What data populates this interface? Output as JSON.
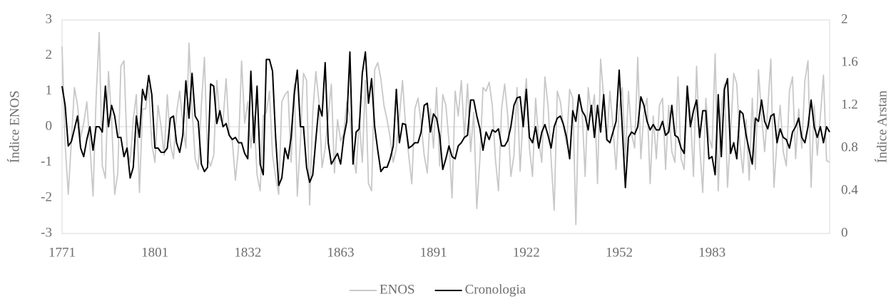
{
  "chart_data": {
    "type": "line",
    "y_label": "Índice ENOS",
    "y2_label": "Índice Arstan",
    "categories": [
      "1771",
      null,
      null,
      null,
      null,
      null,
      null,
      null,
      null,
      null,
      null,
      null,
      null,
      null,
      null,
      null,
      null,
      null,
      null,
      null,
      null,
      null,
      null,
      null,
      null,
      null,
      null,
      null,
      null,
      null,
      "1801",
      null,
      null,
      null,
      null,
      null,
      null,
      null,
      null,
      null,
      null,
      null,
      null,
      null,
      null,
      null,
      null,
      null,
      null,
      null,
      null,
      null,
      null,
      null,
      null,
      null,
      null,
      null,
      null,
      null,
      "1832",
      null,
      null,
      null,
      null,
      null,
      null,
      null,
      null,
      null,
      null,
      null,
      null,
      null,
      null,
      null,
      null,
      null,
      null,
      null,
      null,
      null,
      null,
      null,
      null,
      null,
      null,
      null,
      null,
      null,
      "1863",
      null,
      null,
      null,
      null,
      null,
      null,
      null,
      null,
      null,
      null,
      null,
      null,
      null,
      null,
      null,
      null,
      null,
      null,
      null,
      null,
      null,
      null,
      null,
      null,
      null,
      null,
      null,
      null,
      null,
      "1891",
      null,
      null,
      null,
      null,
      null,
      null,
      null,
      null,
      null,
      null,
      null,
      null,
      null,
      null,
      null,
      null,
      null,
      null,
      null,
      null,
      null,
      null,
      null,
      null,
      null,
      null,
      null,
      null,
      null,
      "1922",
      null,
      null,
      null,
      null,
      null,
      null,
      null,
      null,
      null,
      null,
      null,
      null,
      null,
      null,
      null,
      null,
      null,
      null,
      null,
      null,
      null,
      null,
      null,
      null,
      null,
      null,
      null,
      null,
      null,
      "1952",
      null,
      null,
      null,
      null,
      null,
      null,
      null,
      null,
      null,
      null,
      null,
      null,
      null,
      null,
      null,
      null,
      null,
      null,
      null,
      null,
      null,
      null,
      null,
      null,
      null,
      null,
      null,
      null,
      null,
      "1983",
      null,
      null,
      null,
      null,
      null,
      null,
      null,
      null,
      null,
      null,
      null,
      null,
      null,
      null,
      null,
      null,
      null,
      null,
      null,
      null,
      null,
      null,
      null,
      null,
      null,
      null,
      null,
      null,
      null,
      null,
      null,
      null,
      null,
      null,
      null,
      null,
      null,
      null
    ],
    "series": [
      {
        "name": "ENOS",
        "color": "#c8c8c8",
        "axis": "y",
        "values": [
          2.25,
          -0.5,
          -1.9,
          -0.4,
          1.1,
          0.6,
          -0.3,
          0.1,
          0.7,
          -0.5,
          -1.95,
          0.8,
          2.65,
          -1.1,
          -1.45,
          1.55,
          0.2,
          -1.9,
          -1.3,
          1.7,
          1.85,
          -0.6,
          -1.0,
          0.2,
          0.9,
          -1.85,
          0.5,
          0.5,
          1.15,
          -0.5,
          -1.0,
          0.6,
          0.0,
          -0.8,
          0.9,
          -0.5,
          -0.9,
          0.4,
          1.0,
          0.1,
          -0.6,
          2.35,
          0.5,
          -0.9,
          -1.2,
          0.6,
          1.95,
          -0.9,
          -1.1,
          -0.8,
          1.3,
          0.2,
          0.15,
          1.35,
          -0.2,
          -0.4,
          -1.5,
          -0.6,
          1.85,
          0.1,
          0.7,
          -0.6,
          0.3,
          -1.35,
          -1.8,
          0.3,
          0.4,
          1.0,
          -0.8,
          -1.4,
          -1.9,
          0.7,
          0.9,
          1.0,
          -1.0,
          1.2,
          -1.95,
          -0.4,
          1.5,
          1.3,
          -2.2,
          0.4,
          1.55,
          0.7,
          -1.15,
          -0.6,
          0.3,
          1.2,
          -1.3,
          0.2,
          -0.4,
          -0.2,
          0.7,
          0.3,
          -0.8,
          -1.3,
          0.2,
          -1.0,
          1.3,
          -1.6,
          -1.8,
          1.6,
          1.8,
          1.35,
          0.6,
          0.2,
          -0.3,
          -1.0,
          -0.6,
          0.3,
          1.3,
          0.0,
          -0.8,
          -1.6,
          0.5,
          0.8,
          0.1,
          -0.8,
          -1.3,
          0.5,
          -0.6,
          1.1,
          -1.1,
          0.9,
          0.6,
          -0.4,
          -2.0,
          1.0,
          0.3,
          1.3,
          -0.3,
          1.2,
          -0.7,
          0.4,
          -2.3,
          -0.9,
          1.1,
          1.0,
          1.25,
          0.6,
          -0.9,
          -1.8,
          0.5,
          1.2,
          0.3,
          -1.4,
          -0.8,
          1.1,
          -1.25,
          0.4,
          1.35,
          -0.6,
          -1.4,
          0.8,
          -0.4,
          -1.0,
          1.4,
          0.6,
          -0.9,
          -2.35,
          1.0,
          0.7,
          0.0,
          -0.5,
          1.05,
          0.8,
          -2.75,
          0.8,
          0.5,
          -1.4,
          1.1,
          0.3,
          0.9,
          -1.6,
          1.9,
          0.8,
          -0.4,
          1.0,
          0.0,
          -1.2,
          0.5,
          1.1,
          -0.9,
          1.0,
          -0.2,
          -0.6,
          1.95,
          -0.9,
          0.4,
          0.8,
          -1.6,
          0.3,
          -0.9,
          0.6,
          0.8,
          -1.2,
          0.6,
          -0.7,
          -1.0,
          1.4,
          -0.9,
          -1.2,
          1.1,
          0.4,
          -1.4,
          1.7,
          -0.5,
          -1.85,
          0.8,
          -0.3,
          -0.6,
          2.05,
          -1.8,
          0.5,
          1.2,
          -1.7,
          -0.2,
          1.5,
          1.2,
          -0.5,
          -1.3,
          0.2,
          -1.5,
          0.8,
          -1.2,
          1.6,
          0.3,
          -0.7,
          0.5,
          1.9,
          -1.7,
          -0.4,
          0.6,
          -0.7,
          -1.1,
          1.0,
          1.4,
          -0.9,
          0.5,
          -0.6,
          1.3,
          1.85,
          -1.7,
          0.6,
          -0.8,
          0.3,
          1.45,
          -0.95,
          -1.0
        ]
      },
      {
        "name": "Cronologia",
        "color": "#000000",
        "axis": "y2",
        "values": [
          1.38,
          1.2,
          0.82,
          0.86,
          0.98,
          1.1,
          0.8,
          0.72,
          0.88,
          1.0,
          0.78,
          1.0,
          1.0,
          0.95,
          1.38,
          1.0,
          1.2,
          1.1,
          0.9,
          0.9,
          0.72,
          0.8,
          0.52,
          0.62,
          1.1,
          0.9,
          1.35,
          1.25,
          1.48,
          1.3,
          0.8,
          0.8,
          0.76,
          0.76,
          0.8,
          1.08,
          1.1,
          0.85,
          0.76,
          0.92,
          1.43,
          1.08,
          1.5,
          1.1,
          1.05,
          0.65,
          0.58,
          0.62,
          1.4,
          1.38,
          1.03,
          1.15,
          1.0,
          1.03,
          0.92,
          0.88,
          0.9,
          0.85,
          0.85,
          0.75,
          0.7,
          1.52,
          0.85,
          1.38,
          0.65,
          0.55,
          1.63,
          1.63,
          1.52,
          0.9,
          0.45,
          0.52,
          0.8,
          0.7,
          0.9,
          1.3,
          1.53,
          1.0,
          1.0,
          0.62,
          0.48,
          0.55,
          0.88,
          1.2,
          1.1,
          1.6,
          0.85,
          0.65,
          0.7,
          0.75,
          0.65,
          0.9,
          1.05,
          1.7,
          0.65,
          0.95,
          0.98,
          1.5,
          1.7,
          1.22,
          1.45,
          1.0,
          0.78,
          0.58,
          0.62,
          0.62,
          0.7,
          0.82,
          1.35,
          0.85,
          1.03,
          1.02,
          0.8,
          0.82,
          0.85,
          0.85,
          0.95,
          1.2,
          1.22,
          0.95,
          1.12,
          1.08,
          0.92,
          0.6,
          0.7,
          0.82,
          0.72,
          0.7,
          0.82,
          0.85,
          0.9,
          0.92,
          1.25,
          1.25,
          1.1,
          0.98,
          0.78,
          0.95,
          0.88,
          0.97,
          0.95,
          0.98,
          0.82,
          0.82,
          0.87,
          1.0,
          1.2,
          1.27,
          1.28,
          1.0,
          1.35,
          0.9,
          0.85,
          1.0,
          0.8,
          0.95,
          1.02,
          0.92,
          0.8,
          1.0,
          1.08,
          1.1,
          1.02,
          0.9,
          0.7,
          1.15,
          1.05,
          1.3,
          1.15,
          1.1,
          0.97,
          1.2,
          0.9,
          1.2,
          0.95,
          1.3,
          0.88,
          0.85,
          0.95,
          1.05,
          1.53,
          0.98,
          0.43,
          0.9,
          0.95,
          0.93,
          1.0,
          1.28,
          1.2,
          1.05,
          0.97,
          1.02,
          0.97,
          0.97,
          1.05,
          0.92,
          0.95,
          1.2,
          0.92,
          0.9,
          0.8,
          0.75,
          1.38,
          1.0,
          1.15,
          1.25,
          0.9,
          1.15,
          1.15,
          0.7,
          0.72,
          0.55,
          1.3,
          0.72,
          1.35,
          1.45,
          0.75,
          0.85,
          0.7,
          1.15,
          1.12,
          0.92,
          0.78,
          0.65,
          1.08,
          1.05,
          1.25,
          1.05,
          0.98,
          1.1,
          1.12,
          0.85,
          0.98,
          0.9,
          0.88,
          0.8,
          0.95,
          1.0,
          1.08,
          0.9,
          0.85,
          1.0,
          1.25,
          1.0,
          0.9,
          1.0,
          0.85,
          1.0,
          0.95
        ]
      }
    ],
    "ylim": [
      -3,
      3
    ],
    "yticks": [
      -3,
      -2,
      -1,
      0,
      1,
      2,
      3
    ],
    "y2lim": [
      0,
      2
    ],
    "y2ticks": [
      0,
      0.4,
      0.8,
      1.2,
      1.6,
      2
    ],
    "legend": "bottom"
  }
}
